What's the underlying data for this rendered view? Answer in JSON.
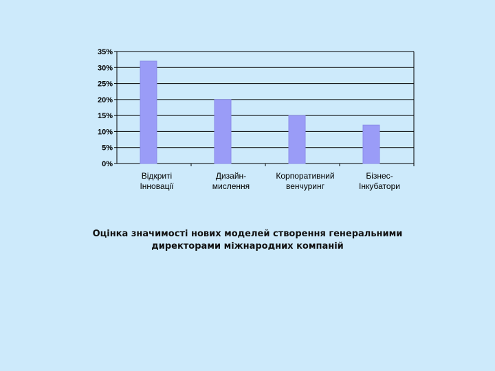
{
  "chart_data": {
    "type": "bar",
    "categories": [
      [
        "Відкриті",
        "Інновації"
      ],
      [
        "Дизайн-",
        "мислення"
      ],
      [
        "Корпоративний",
        "венчуринг"
      ],
      [
        "Бізнес-",
        "Інкубатори"
      ]
    ],
    "values": [
      32,
      20,
      15,
      12
    ],
    "ylim": [
      0,
      35
    ],
    "yticks": [
      "0%",
      "5%",
      "10%",
      "15%",
      "20%",
      "25%",
      "30%",
      "35%"
    ],
    "grid": true,
    "legend": "none",
    "colors": {
      "bar": "#9a9cf7",
      "bar_edge": "#8a8ce8",
      "grid": "#000000"
    }
  },
  "caption": "Оцінка значимості нових моделей створення генеральними директорами міжнародних компаній"
}
